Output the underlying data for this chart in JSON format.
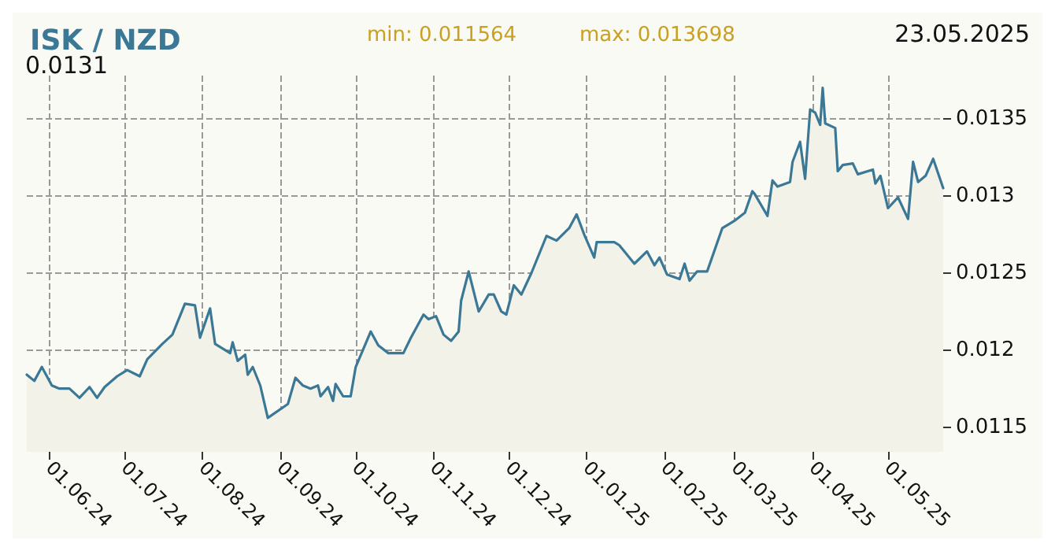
{
  "chart_data": {
    "type": "area",
    "title": "ISK / NZD",
    "annotations": [
      "min: 0.011564",
      "max: 0.013698",
      "23.05.2025",
      "0.0131"
    ],
    "x": [
      "2024-05-23",
      "2024-05-26",
      "2024-05-29",
      "2024-06-02",
      "2024-06-05",
      "2024-06-09",
      "2024-06-13",
      "2024-06-17",
      "2024-06-20",
      "2024-06-23",
      "2024-06-28",
      "2024-07-02",
      "2024-07-07",
      "2024-07-10",
      "2024-07-16",
      "2024-07-20",
      "2024-07-25",
      "2024-07-29",
      "2024-07-31",
      "2024-08-04",
      "2024-08-06",
      "2024-08-12",
      "2024-08-13",
      "2024-08-15",
      "2024-08-18",
      "2024-08-19",
      "2024-08-21",
      "2024-08-24",
      "2024-08-27",
      "2024-09-04",
      "2024-09-07",
      "2024-09-10",
      "2024-09-13",
      "2024-09-16",
      "2024-09-17",
      "2024-09-20",
      "2024-09-22",
      "2024-09-23",
      "2024-09-26",
      "2024-09-29",
      "2024-10-01",
      "2024-10-07",
      "2024-10-10",
      "2024-10-14",
      "2024-10-20",
      "2024-10-23",
      "2024-10-28",
      "2024-10-30",
      "2024-11-02",
      "2024-11-05",
      "2024-11-08",
      "2024-11-11",
      "2024-11-12",
      "2024-11-15",
      "2024-11-19",
      "2024-11-23",
      "2024-11-25",
      "2024-11-28",
      "2024-11-30",
      "2024-12-03",
      "2024-12-06",
      "2024-12-10",
      "2024-12-16",
      "2024-12-20",
      "2024-12-25",
      "2024-12-28",
      "2024-12-31",
      "2025-01-04",
      "2025-01-05",
      "2025-01-12",
      "2025-01-14",
      "2025-01-20",
      "2025-01-25",
      "2025-01-28",
      "2025-01-30",
      "2025-02-02",
      "2025-02-07",
      "2025-02-09",
      "2025-02-11",
      "2025-02-14",
      "2025-02-18",
      "2025-02-21",
      "2025-02-24",
      "2025-02-27",
      "2025-03-01",
      "2025-03-05",
      "2025-03-08",
      "2025-03-09",
      "2025-03-14",
      "2025-03-16",
      "2025-03-18",
      "2025-03-23",
      "2025-03-24",
      "2025-03-27",
      "2025-03-29",
      "2025-03-31",
      "2025-04-02",
      "2025-04-04",
      "2025-04-05",
      "2025-04-06",
      "2025-04-10",
      "2025-04-11",
      "2025-04-13",
      "2025-04-17",
      "2025-04-19",
      "2025-04-25",
      "2025-04-26",
      "2025-04-28",
      "2025-05-01",
      "2025-05-05",
      "2025-05-09",
      "2025-05-11",
      "2025-05-13",
      "2025-05-16",
      "2025-05-19",
      "2025-05-23"
    ],
    "series": [
      {
        "color": "#3a7896",
        "values": [
          0.01184,
          0.0118,
          0.01189,
          0.01177,
          0.01175,
          0.01175,
          0.01169,
          0.01176,
          0.01169,
          0.01176,
          0.01183,
          0.01187,
          0.01183,
          0.01194,
          0.01204,
          0.0121,
          0.0123,
          0.01229,
          0.01208,
          0.01227,
          0.01204,
          0.01198,
          0.01205,
          0.01193,
          0.01197,
          0.01184,
          0.01189,
          0.01177,
          0.01156,
          0.01165,
          0.01182,
          0.01177,
          0.01175,
          0.01177,
          0.0117,
          0.01176,
          0.01167,
          0.01178,
          0.0117,
          0.0117,
          0.01189,
          0.01212,
          0.01203,
          0.01198,
          0.01198,
          0.01208,
          0.01223,
          0.0122,
          0.01222,
          0.0121,
          0.01206,
          0.01212,
          0.01232,
          0.01251,
          0.01225,
          0.01236,
          0.01236,
          0.01225,
          0.01223,
          0.01242,
          0.01236,
          0.0125,
          0.01274,
          0.01271,
          0.01279,
          0.01288,
          0.01275,
          0.0126,
          0.0127,
          0.0127,
          0.01268,
          0.01256,
          0.01264,
          0.01255,
          0.0126,
          0.01249,
          0.01246,
          0.01256,
          0.01245,
          0.01251,
          0.01251,
          0.01265,
          0.01279,
          0.01282,
          0.01284,
          0.01289,
          0.01303,
          0.01301,
          0.01287,
          0.0131,
          0.01306,
          0.01309,
          0.01322,
          0.01335,
          0.01311,
          0.01356,
          0.01354,
          0.01346,
          0.0137,
          0.01347,
          0.01344,
          0.01316,
          0.0132,
          0.01321,
          0.01314,
          0.01317,
          0.01308,
          0.01313,
          0.01292,
          0.01299,
          0.01285,
          0.01322,
          0.01309,
          0.01313,
          0.01324,
          0.01305
        ]
      }
    ],
    "xlim": [
      "2024-05-23",
      "2025-05-23"
    ],
    "xticks": [
      {
        "value": "2024-06-01",
        "label": "01.06.24"
      },
      {
        "value": "2024-07-01",
        "label": "01.07.24"
      },
      {
        "value": "2024-08-01",
        "label": "01.08.24"
      },
      {
        "value": "2024-09-01",
        "label": "01.09.24"
      },
      {
        "value": "2024-10-01",
        "label": "01.10.24"
      },
      {
        "value": "2024-11-01",
        "label": "01.11.24"
      },
      {
        "value": "2024-12-01",
        "label": "01.12.24"
      },
      {
        "value": "2025-01-01",
        "label": "01.01.25"
      },
      {
        "value": "2025-02-01",
        "label": "01.02.25"
      },
      {
        "value": "2025-03-01",
        "label": "01.03.25"
      },
      {
        "value": "2025-04-01",
        "label": "01.04.25"
      },
      {
        "value": "2025-05-01",
        "label": "01.05.25"
      }
    ],
    "ylim": [
      0.01134,
      0.01378
    ],
    "yticks": [
      0.0115,
      0.012,
      0.0125,
      0.013,
      0.0135
    ],
    "grid": true,
    "marker": "none",
    "line_style": "solid"
  }
}
